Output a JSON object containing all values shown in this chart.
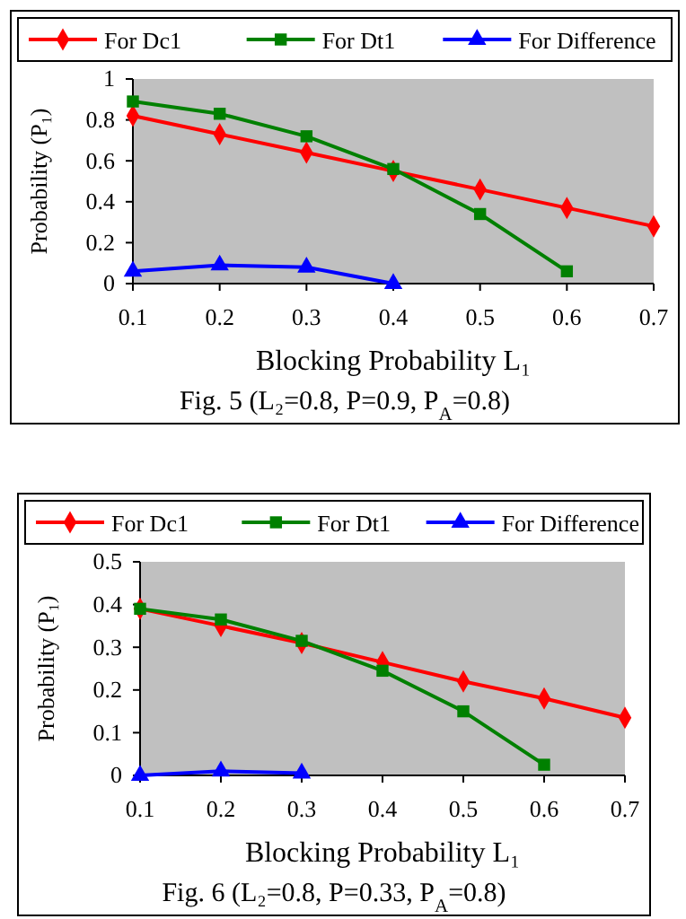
{
  "chart_data": [
    {
      "type": "line",
      "title": "Fig. 5 (L₂=0.8, P=0.9, P$_{A}$=0.8)",
      "xlabel": "Blocking Probability L₁",
      "ylabel": "Probability (P₁)",
      "x": [
        0.1,
        0.2,
        0.3,
        0.4,
        0.5,
        0.6,
        0.7
      ],
      "xlim": [
        0.1,
        0.7
      ],
      "xticks": [
        0.1,
        0.2,
        0.3,
        0.4,
        0.5,
        0.6,
        0.7
      ],
      "ylim": [
        0,
        1
      ],
      "yticks": [
        0,
        0.2,
        0.4,
        0.6,
        0.8,
        1
      ],
      "legend": "top",
      "grid": false,
      "series": [
        {
          "name": "For Dc1",
          "color": "#ff0000",
          "marker": "diamond",
          "values": [
            0.82,
            0.73,
            0.64,
            0.55,
            0.46,
            0.37,
            0.28
          ]
        },
        {
          "name": "For Dt1",
          "color": "#008000",
          "marker": "square",
          "values": [
            0.89,
            0.83,
            0.72,
            0.56,
            0.34,
            0.06,
            null
          ]
        },
        {
          "name": "For Difference",
          "color": "#0000ff",
          "marker": "triangle",
          "values": [
            0.06,
            0.09,
            0.08,
            0.0,
            null,
            null,
            null
          ]
        }
      ]
    },
    {
      "type": "line",
      "title": "Fig. 6 (L₂=0.8, P=0.33, P$_{A}$=0.8)",
      "xlabel": "Blocking Probability  L₁",
      "ylabel": "Probability (P₁)",
      "x": [
        0.1,
        0.2,
        0.3,
        0.4,
        0.5,
        0.6,
        0.7
      ],
      "xlim": [
        0.1,
        0.7
      ],
      "xticks": [
        0.1,
        0.2,
        0.3,
        0.4,
        0.5,
        0.6,
        0.7
      ],
      "ylim": [
        0,
        0.5
      ],
      "yticks": [
        0,
        0.1,
        0.2,
        0.3,
        0.4,
        0.5
      ],
      "legend": "top",
      "grid": false,
      "series": [
        {
          "name": "For Dc1",
          "color": "#ff0000",
          "marker": "diamond",
          "values": [
            0.39,
            0.35,
            0.31,
            0.265,
            0.22,
            0.18,
            0.135
          ]
        },
        {
          "name": "For Dt1",
          "color": "#008000",
          "marker": "square",
          "values": [
            0.39,
            0.365,
            0.315,
            0.245,
            0.15,
            0.025,
            null
          ]
        },
        {
          "name": "For Difference",
          "color": "#0000ff",
          "marker": "triangle",
          "values": [
            0.0,
            0.01,
            0.005,
            null,
            null,
            null,
            null
          ]
        }
      ]
    }
  ]
}
